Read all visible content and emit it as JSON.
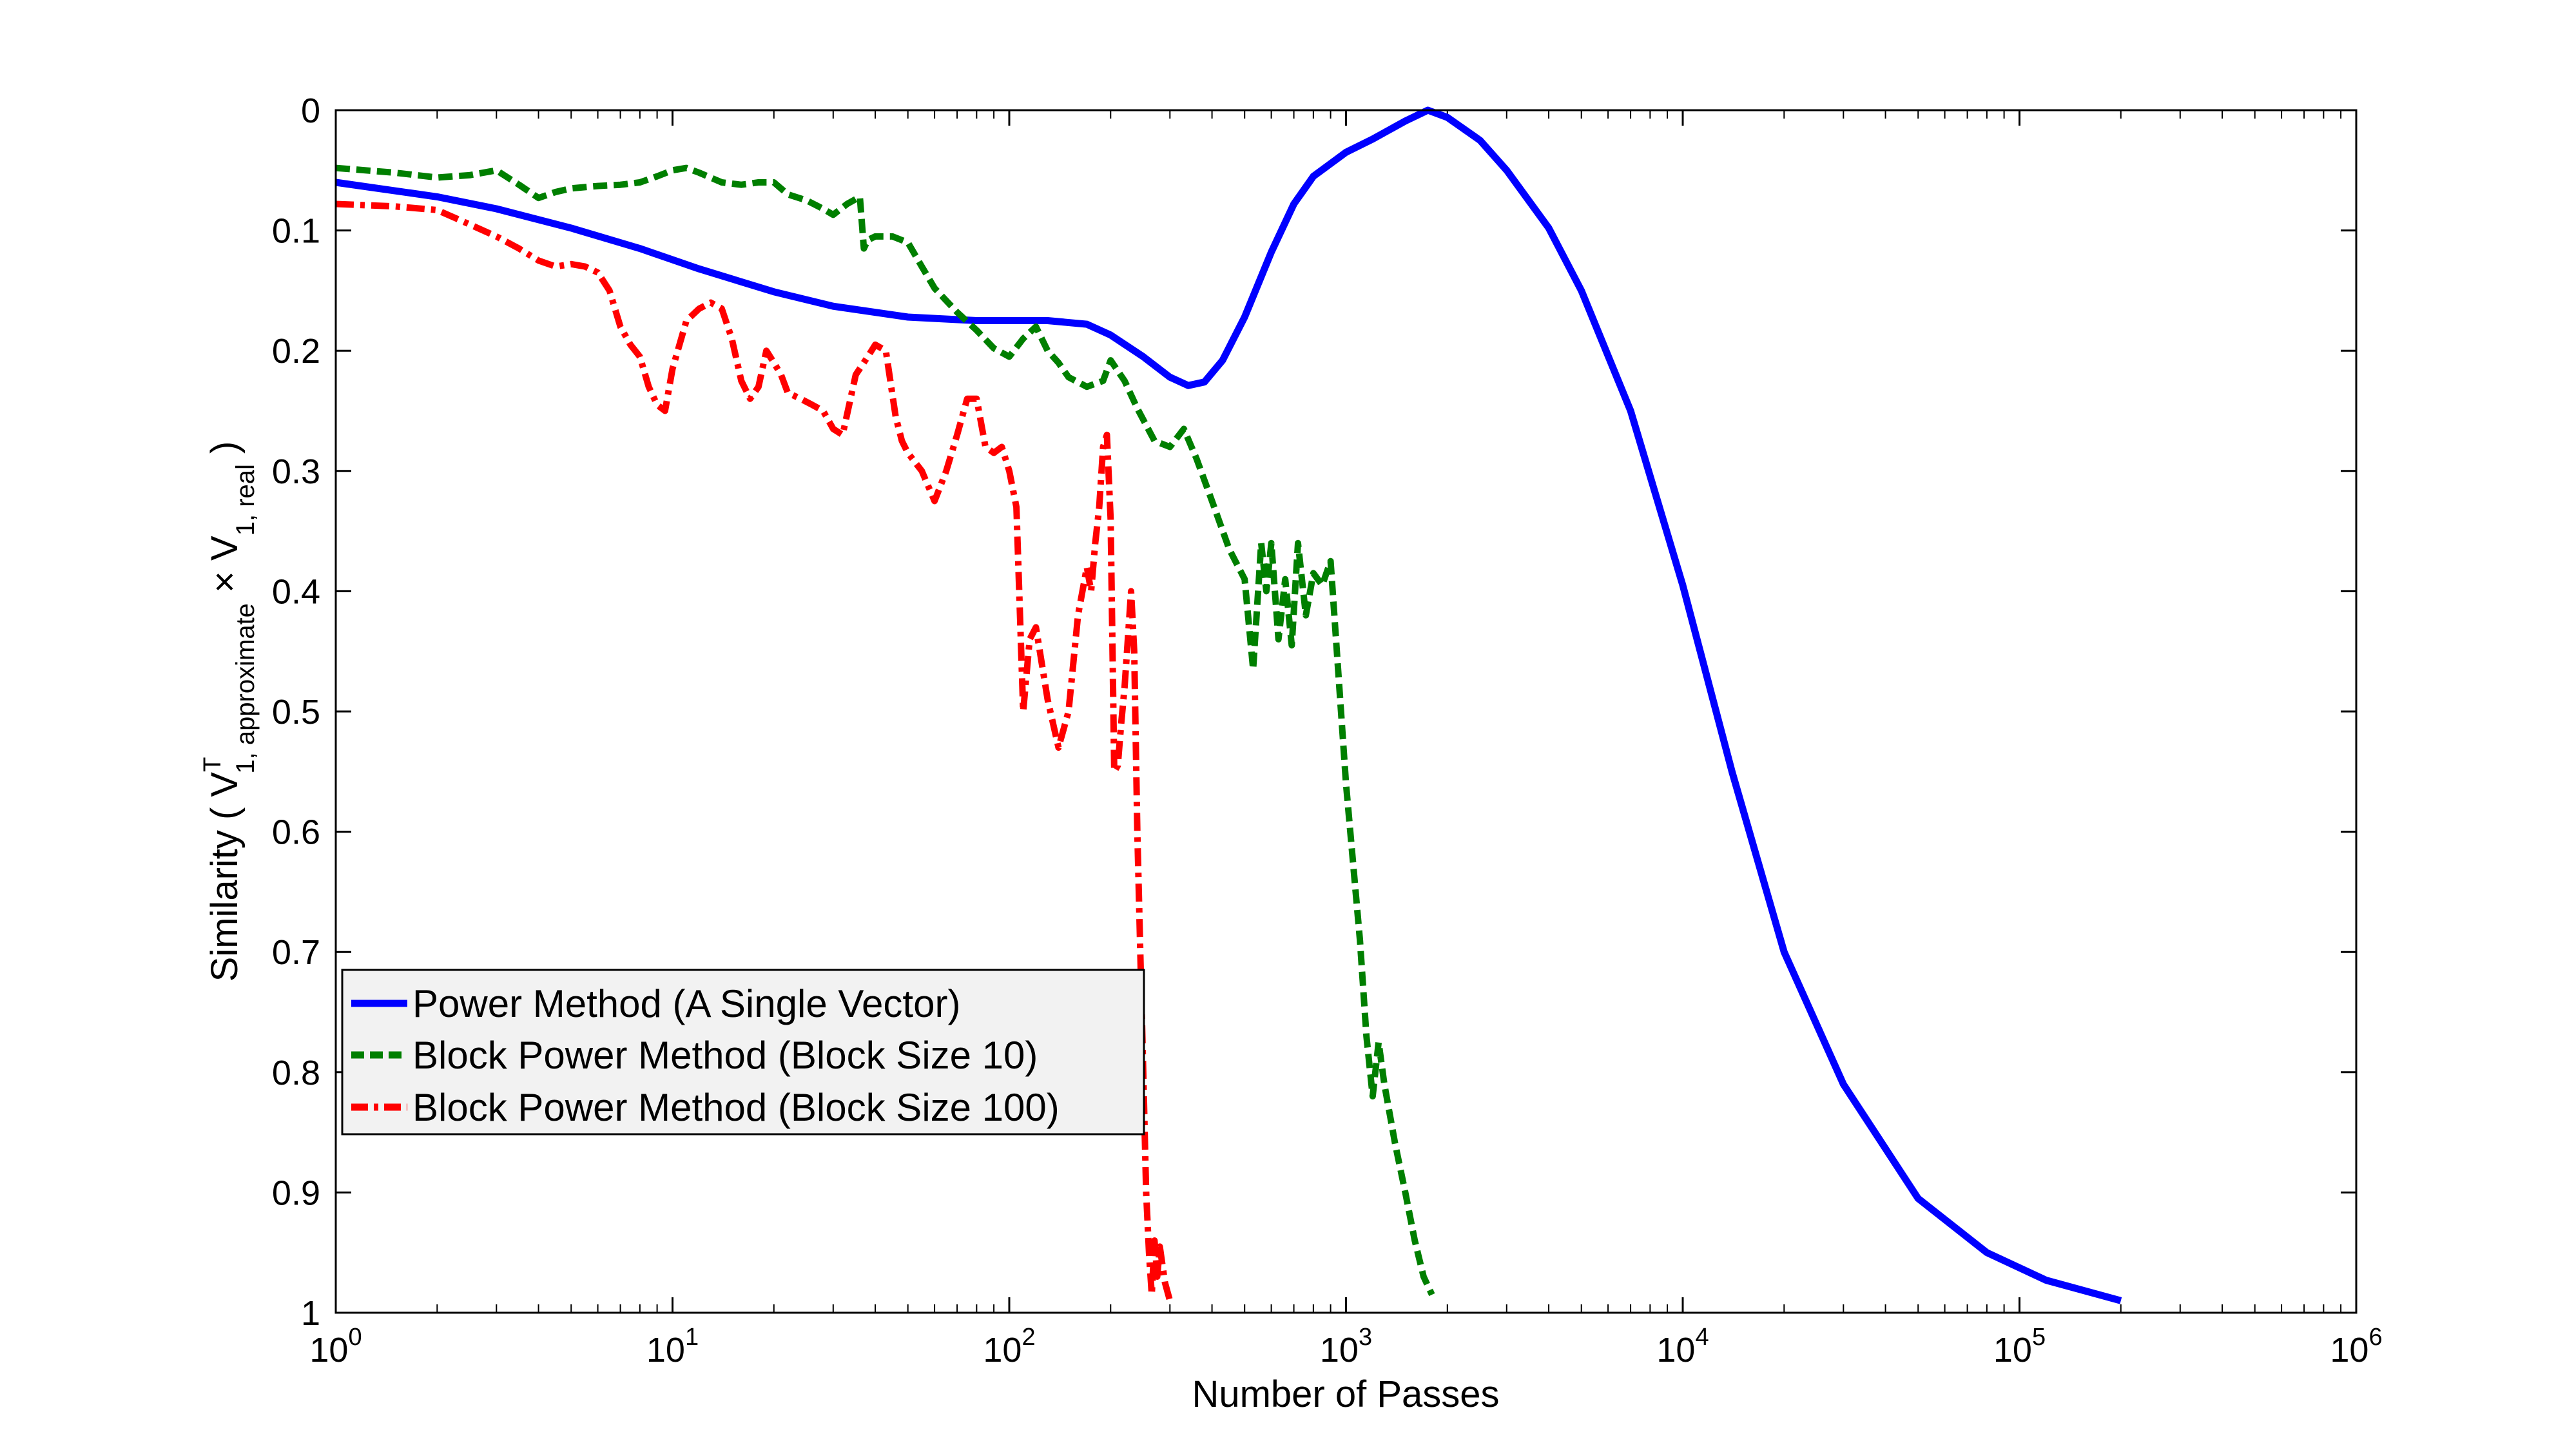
{
  "chart_data": {
    "type": "line",
    "title": "",
    "xlabel": "Number of Passes",
    "ylabel": {
      "prefix": "Similarity ( V",
      "sup": "T",
      "sub": "1, approximate",
      "mid": " × V",
      "sub2": "1, real",
      "suffix": " )"
    },
    "x_scale": "log",
    "xlim": [
      1,
      1000000
    ],
    "ylim": [
      0,
      1
    ],
    "y_reversed": true,
    "x_ticks": [
      {
        "value": 1,
        "base": "10",
        "exp": "0"
      },
      {
        "value": 10,
        "base": "10",
        "exp": "1"
      },
      {
        "value": 100,
        "base": "10",
        "exp": "2"
      },
      {
        "value": 1000,
        "base": "10",
        "exp": "3"
      },
      {
        "value": 10000,
        "base": "10",
        "exp": "4"
      },
      {
        "value": 100000,
        "base": "10",
        "exp": "5"
      },
      {
        "value": 1000000,
        "base": "10",
        "exp": "6"
      }
    ],
    "y_ticks": [
      {
        "value": 0,
        "label": "0"
      },
      {
        "value": 0.1,
        "label": "0.1"
      },
      {
        "value": 0.2,
        "label": "0.2"
      },
      {
        "value": 0.3,
        "label": "0.3"
      },
      {
        "value": 0.4,
        "label": "0.4"
      },
      {
        "value": 0.5,
        "label": "0.5"
      },
      {
        "value": 0.6,
        "label": "0.6"
      },
      {
        "value": 0.7,
        "label": "0.7"
      },
      {
        "value": 0.8,
        "label": "0.8"
      },
      {
        "value": 0.9,
        "label": "0.9"
      },
      {
        "value": 1,
        "label": "1"
      }
    ],
    "grid": false,
    "legend_position": "lower-left",
    "series": [
      {
        "name": "Power Method (A Single Vector)",
        "color": "#0000ff",
        "dash": "solid",
        "x": [
          1,
          2,
          3,
          5,
          8,
          12,
          20,
          30,
          50,
          80,
          100,
          130,
          170,
          200,
          250,
          300,
          340,
          380,
          430,
          500,
          600,
          700,
          800,
          1000,
          1200,
          1500,
          1750,
          2000,
          2500,
          3000,
          4000,
          5000,
          7000,
          10000,
          14000,
          20000,
          30000,
          50000,
          80000,
          120000,
          200000
        ],
        "y": [
          0.06,
          0.072,
          0.082,
          0.098,
          0.115,
          0.132,
          0.151,
          0.163,
          0.172,
          0.175,
          0.175,
          0.175,
          0.178,
          0.187,
          0.205,
          0.222,
          0.229,
          0.226,
          0.208,
          0.172,
          0.118,
          0.078,
          0.055,
          0.035,
          0.024,
          0.009,
          0.0,
          0.006,
          0.025,
          0.05,
          0.098,
          0.15,
          0.25,
          0.395,
          0.55,
          0.7,
          0.81,
          0.905,
          0.95,
          0.973,
          0.99
        ]
      },
      {
        "name": "Block Power Method (Block Size 10)",
        "color": "#007f00",
        "dash": "dash",
        "x": [
          1,
          1.5,
          2,
          2.5,
          3,
          3.5,
          4,
          4.5,
          5,
          6,
          7,
          8,
          9,
          10,
          11,
          12,
          14,
          16,
          18,
          20,
          22,
          25,
          28,
          30,
          33,
          36,
          37,
          38,
          40,
          45,
          50,
          55,
          60,
          70,
          80,
          90,
          100,
          110,
          120,
          130,
          140,
          150,
          170,
          190,
          200,
          220,
          240,
          270,
          300,
          330,
          360,
          400,
          450,
          500,
          530,
          560,
          580,
          600,
          630,
          660,
          690,
          720,
          760,
          800,
          850,
          900,
          1000,
          1100,
          1150,
          1200,
          1250,
          1300,
          1400,
          1500,
          1600,
          1700,
          1800
        ],
        "y": [
          0.048,
          0.052,
          0.056,
          0.054,
          0.05,
          0.062,
          0.073,
          0.068,
          0.065,
          0.063,
          0.062,
          0.06,
          0.055,
          0.05,
          0.048,
          0.052,
          0.06,
          0.062,
          0.06,
          0.06,
          0.07,
          0.075,
          0.082,
          0.087,
          0.078,
          0.072,
          0.115,
          0.108,
          0.105,
          0.105,
          0.11,
          0.13,
          0.148,
          0.168,
          0.183,
          0.198,
          0.205,
          0.19,
          0.18,
          0.2,
          0.21,
          0.222,
          0.23,
          0.225,
          0.208,
          0.225,
          0.248,
          0.275,
          0.28,
          0.265,
          0.29,
          0.325,
          0.365,
          0.39,
          0.465,
          0.36,
          0.4,
          0.36,
          0.44,
          0.39,
          0.445,
          0.36,
          0.42,
          0.385,
          0.395,
          0.375,
          0.56,
          0.69,
          0.77,
          0.82,
          0.775,
          0.81,
          0.86,
          0.9,
          0.94,
          0.97,
          0.985
        ]
      },
      {
        "name": "Block Power Method (Block Size 100)",
        "color": "#ff0000",
        "dash": "dashdot",
        "x": [
          1,
          1.5,
          2,
          2.5,
          3,
          3.5,
          4,
          4.5,
          5,
          5.5,
          6,
          6.5,
          7,
          7.5,
          8,
          8.5,
          9,
          9.5,
          10,
          11,
          12,
          13,
          14,
          15,
          16,
          17,
          18,
          19,
          20,
          21,
          22,
          24,
          26,
          28,
          30,
          32,
          35,
          38,
          40,
          43,
          46,
          48,
          50,
          55,
          60,
          65,
          70,
          75,
          80,
          85,
          90,
          95,
          100,
          105,
          110,
          115,
          120,
          130,
          140,
          150,
          160,
          170,
          175,
          180,
          185,
          190,
          195,
          200,
          205,
          210,
          215,
          220,
          225,
          230,
          235,
          240,
          245,
          250,
          255,
          260,
          265,
          270,
          275,
          280,
          290,
          300
        ],
        "y": [
          0.078,
          0.08,
          0.083,
          0.095,
          0.105,
          0.115,
          0.125,
          0.13,
          0.128,
          0.13,
          0.135,
          0.15,
          0.18,
          0.195,
          0.205,
          0.23,
          0.245,
          0.25,
          0.215,
          0.175,
          0.165,
          0.16,
          0.165,
          0.19,
          0.225,
          0.24,
          0.23,
          0.2,
          0.21,
          0.22,
          0.235,
          0.24,
          0.245,
          0.25,
          0.265,
          0.27,
          0.22,
          0.205,
          0.195,
          0.2,
          0.255,
          0.275,
          0.285,
          0.3,
          0.325,
          0.3,
          0.27,
          0.24,
          0.24,
          0.28,
          0.285,
          0.28,
          0.3,
          0.33,
          0.5,
          0.44,
          0.43,
          0.49,
          0.53,
          0.5,
          0.42,
          0.38,
          0.4,
          0.36,
          0.33,
          0.28,
          0.27,
          0.34,
          0.55,
          0.545,
          0.51,
          0.48,
          0.44,
          0.4,
          0.45,
          0.6,
          0.7,
          0.8,
          0.9,
          0.95,
          0.985,
          0.94,
          0.97,
          0.945,
          0.975,
          0.99
        ]
      }
    ]
  }
}
